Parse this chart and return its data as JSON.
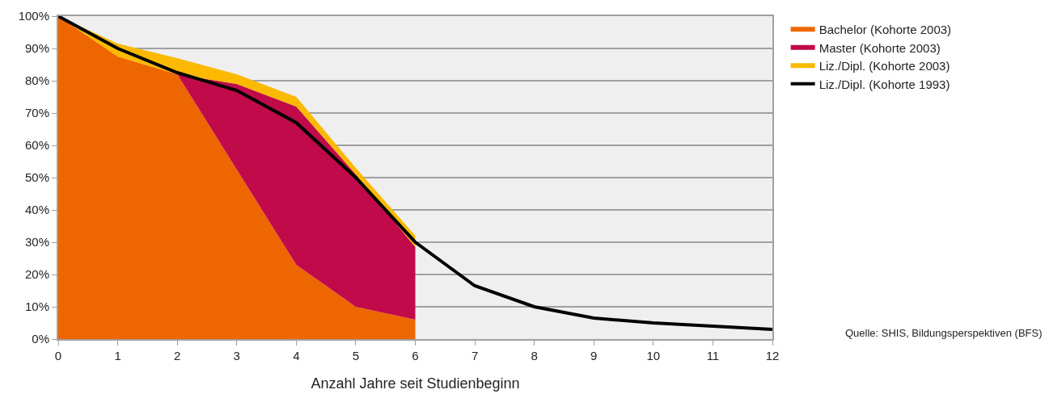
{
  "chart_data": {
    "type": "area",
    "stacked": true,
    "xlabel": "Anzahl Jahre seit Studienbeginn",
    "x": [
      0,
      1,
      2,
      3,
      4,
      5,
      6
    ],
    "series": [
      {
        "name": "Bachelor (Kohorte 2003)",
        "color": "#ee6600",
        "values": [
          100,
          87.5,
          82,
          52.5,
          23,
          10,
          6
        ]
      },
      {
        "name": "Master (Kohorte 2003)",
        "color": "#c00a4a",
        "values": [
          0,
          0,
          0,
          26.5,
          49,
          41,
          22.5
        ]
      },
      {
        "name": "Liz./Dipl. (Kohorte 2003)",
        "color": "#fbb900",
        "values": [
          0,
          4,
          5,
          3,
          3,
          2,
          3.5
        ]
      },
      {
        "name": "Liz./Dipl. (Kohorte 1993)",
        "type": "line",
        "color": "#000000",
        "x": [
          0,
          1,
          2,
          3,
          4,
          5,
          6,
          7,
          8,
          9,
          10,
          11,
          12
        ],
        "values": [
          100,
          90,
          82.5,
          77,
          67,
          50,
          30,
          16.5,
          10,
          6.5,
          5,
          4,
          3
        ]
      }
    ],
    "xlim": [
      0,
      12
    ],
    "xticks": [
      0,
      1,
      2,
      3,
      4,
      5,
      6,
      7,
      8,
      9,
      10,
      11,
      12
    ],
    "ylim": [
      0,
      100
    ],
    "yticks": [
      {
        "value": 0,
        "label": "0%"
      },
      {
        "value": 10,
        "label": "10%"
      },
      {
        "value": 20,
        "label": "20%"
      },
      {
        "value": 30,
        "label": "30%"
      },
      {
        "value": 40,
        "label": "40%"
      },
      {
        "value": 50,
        "label": "50%"
      },
      {
        "value": 60,
        "label": "60%"
      },
      {
        "value": 70,
        "label": "70%"
      },
      {
        "value": 80,
        "label": "80%"
      },
      {
        "value": 90,
        "label": "90%"
      },
      {
        "value": 100,
        "label": "100%"
      }
    ],
    "grid": "y",
    "legend": "top right",
    "marker": "none",
    "line_style": "solid",
    "annotations": [
      "Quelle: SHIS, Bildungsperspektiven (BFS)"
    ]
  }
}
